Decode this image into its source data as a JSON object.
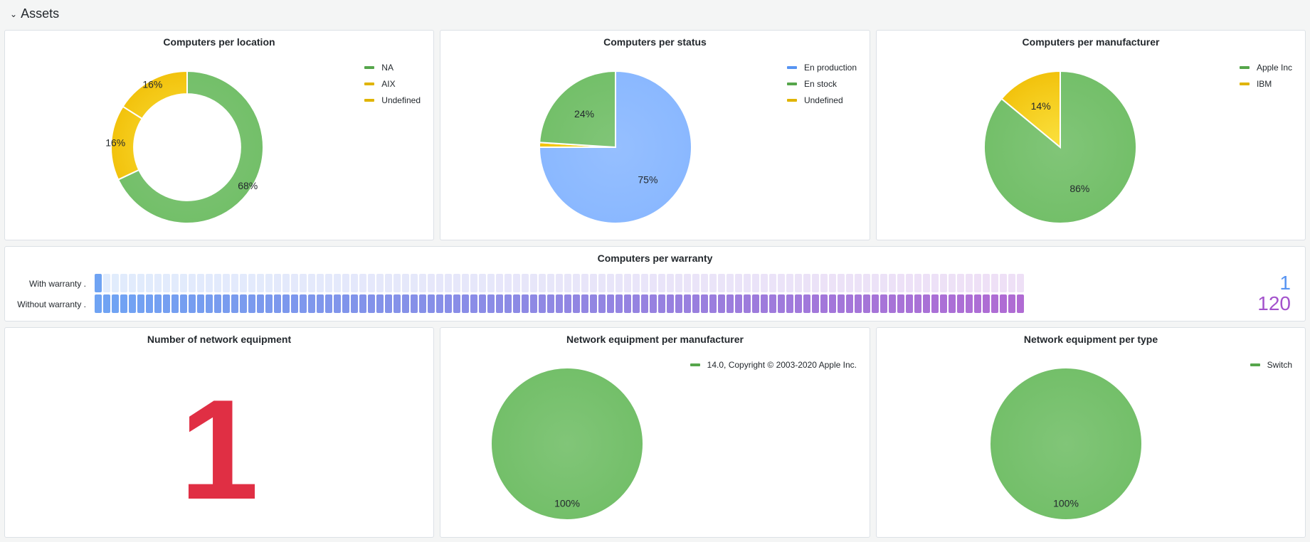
{
  "row": {
    "title": "Assets",
    "collapse_icon": "chevron-down-icon"
  },
  "panels": {
    "location": {
      "title": "Computers per location"
    },
    "status": {
      "title": "Computers per status"
    },
    "manufacturer": {
      "title": "Computers per manufacturer"
    },
    "warranty": {
      "title": "Computers per warranty"
    },
    "network_count": {
      "title": "Number of network equipment",
      "value": "1",
      "color": "#e02f44"
    },
    "network_manufacturer": {
      "title": "Network equipment per manufacturer"
    },
    "network_type": {
      "title": "Network equipment per type"
    }
  },
  "colors": {
    "green": "#73bf69",
    "green_legend": "#56a64b",
    "yellow": "#fade2a",
    "yellow_dark": "#f2cc0c",
    "yellow_legend": "#e0b400",
    "blue": "#8ab8ff",
    "blue_legend": "#5794f2",
    "purple": "#a352cc"
  },
  "chart_data": [
    {
      "id": "location",
      "type": "pie",
      "donut": true,
      "title": "Computers per location",
      "legend_position": "top-right",
      "slices": [
        {
          "label": "NA",
          "value": 68,
          "display": "68%",
          "color": "#73bf69",
          "legend_color": "#56a64b"
        },
        {
          "label": "AIX",
          "value": 16,
          "display": "16%",
          "color": "#fade2a",
          "legend_color": "#e0b400"
        },
        {
          "label": "Undefined",
          "value": 16,
          "display": "16%",
          "color": "#fade2a",
          "legend_color": "#e0b400"
        }
      ]
    },
    {
      "id": "status",
      "type": "pie",
      "donut": false,
      "title": "Computers per status",
      "legend_position": "top-right",
      "slices": [
        {
          "label": "En production",
          "value": 75,
          "display": "75%",
          "color": "#8ab8ff",
          "legend_color": "#5794f2"
        },
        {
          "label": "Undefined",
          "value": 1,
          "display": "",
          "color": "#fade2a",
          "legend_color": "#e0b400"
        },
        {
          "label": "En stock",
          "value": 24,
          "display": "24%",
          "color": "#73bf69",
          "legend_color": "#56a64b"
        }
      ],
      "legend_order": [
        "En production",
        "En stock",
        "Undefined"
      ]
    },
    {
      "id": "manufacturer",
      "type": "pie",
      "donut": false,
      "title": "Computers per manufacturer",
      "legend_position": "top-right",
      "slices": [
        {
          "label": "Apple Inc",
          "value": 86,
          "display": "86%",
          "color": "#73bf69",
          "legend_color": "#56a64b"
        },
        {
          "label": "IBM",
          "value": 14,
          "display": "14%",
          "color": "#fade2a",
          "legend_color": "#e0b400"
        }
      ]
    },
    {
      "id": "warranty",
      "type": "bar",
      "orientation": "horizontal",
      "style": "lcd-gauge",
      "title": "Computers per warranty",
      "categories": [
        "With warranty .",
        "Without warranty ."
      ],
      "values": [
        1,
        120
      ],
      "max": 120,
      "color_scale": [
        "#5794f2",
        "#a352cc"
      ],
      "value_colors": [
        "#5794f2",
        "#a352cc"
      ]
    },
    {
      "id": "network_manufacturer",
      "type": "pie",
      "donut": false,
      "title": "Network equipment per manufacturer",
      "legend_position": "top-right",
      "slices": [
        {
          "label": "14.0, Copyright © 2003-2020 Apple Inc.",
          "value": 100,
          "display": "100%",
          "color": "#73bf69",
          "legend_color": "#56a64b"
        }
      ]
    },
    {
      "id": "network_type",
      "type": "pie",
      "donut": false,
      "title": "Network equipment per type",
      "legend_position": "top-right",
      "slices": [
        {
          "label": "Switch",
          "value": 100,
          "display": "100%",
          "color": "#73bf69",
          "legend_color": "#56a64b"
        }
      ]
    }
  ]
}
